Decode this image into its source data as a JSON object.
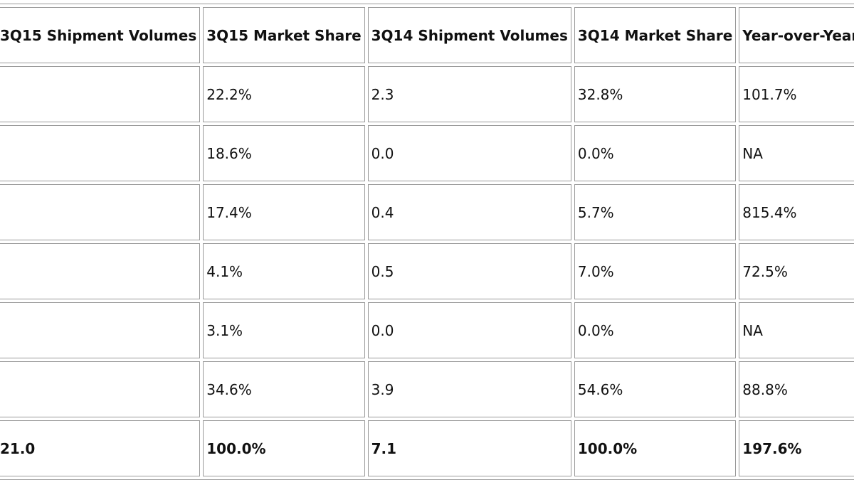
{
  "table": {
    "headers": [
      "3Q15 Shipment Volumes",
      "3Q15 Market Share",
      "3Q14 Shipment Volumes",
      "3Q14 Market Share",
      "Year-over-Year Growth"
    ],
    "rows": [
      {
        "vol_3q15": "",
        "share_3q15": "22.2%",
        "vol_3q14": "2.3",
        "share_3q14": "32.8%",
        "yoy": "101.7%"
      },
      {
        "vol_3q15": "",
        "share_3q15": "18.6%",
        "vol_3q14": "0.0",
        "share_3q14": "0.0%",
        "yoy": "NA"
      },
      {
        "vol_3q15": "",
        "share_3q15": "17.4%",
        "vol_3q14": "0.4",
        "share_3q14": "5.7%",
        "yoy": "815.4%"
      },
      {
        "vol_3q15": "",
        "share_3q15": "4.1%",
        "vol_3q14": "0.5",
        "share_3q14": "7.0%",
        "yoy": "72.5%"
      },
      {
        "vol_3q15": "",
        "share_3q15": "3.1%",
        "vol_3q14": "0.0",
        "share_3q14": "0.0%",
        "yoy": "NA"
      },
      {
        "vol_3q15": "",
        "share_3q15": "34.6%",
        "vol_3q14": "3.9",
        "share_3q14": "54.6%",
        "yoy": "88.8%"
      }
    ],
    "total": {
      "vol_3q15": "21.0",
      "share_3q15": "100.0%",
      "vol_3q14": "7.1",
      "share_3q14": "100.0%",
      "yoy": "197.6%"
    }
  },
  "colors": {
    "border": "#9a9a9a",
    "text": "#111111",
    "link_fragment": "#3aa9d9"
  }
}
